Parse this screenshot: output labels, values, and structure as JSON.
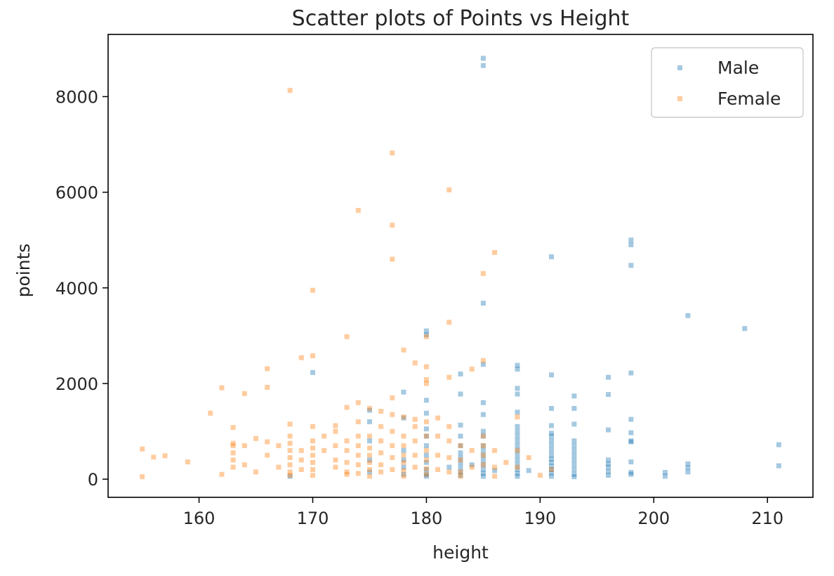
{
  "chart_data": {
    "type": "scatter",
    "title": "Scatter plots of Points vs Height",
    "xlabel": "height",
    "ylabel": "points",
    "xlim": [
      152,
      214
    ],
    "ylim": [
      -380,
      9300
    ],
    "xticks": [
      160,
      170,
      180,
      190,
      200,
      210
    ],
    "yticks": [
      0,
      2000,
      4000,
      6000,
      8000
    ],
    "grid": false,
    "legend_position": "top-right",
    "series": [
      {
        "name": "Male",
        "color": "#1f77b4",
        "points": [
          [
            185,
            8800
          ],
          [
            185,
            8650
          ],
          [
            198,
            5000
          ],
          [
            198,
            4900
          ],
          [
            198,
            4470
          ],
          [
            191,
            4650
          ],
          [
            185,
            3680
          ],
          [
            203,
            3420
          ],
          [
            208,
            3150
          ],
          [
            180,
            3100
          ],
          [
            180,
            3020
          ],
          [
            170,
            2230
          ],
          [
            183,
            2200
          ],
          [
            185,
            2400
          ],
          [
            188,
            2380
          ],
          [
            188,
            2300
          ],
          [
            191,
            2180
          ],
          [
            196,
            2130
          ],
          [
            198,
            2220
          ],
          [
            188,
            1900
          ],
          [
            183,
            1780
          ],
          [
            188,
            1780
          ],
          [
            193,
            1740
          ],
          [
            196,
            1770
          ],
          [
            178,
            1820
          ],
          [
            180,
            1650
          ],
          [
            185,
            1600
          ],
          [
            175,
            1440
          ],
          [
            191,
            1480
          ],
          [
            193,
            1480
          ],
          [
            188,
            1400
          ],
          [
            180,
            1380
          ],
          [
            185,
            1350
          ],
          [
            178,
            1280
          ],
          [
            175,
            1200
          ],
          [
            183,
            1130
          ],
          [
            188,
            1100
          ],
          [
            191,
            1120
          ],
          [
            193,
            1150
          ],
          [
            196,
            1030
          ],
          [
            198,
            1250
          ],
          [
            180,
            1050
          ],
          [
            185,
            1000
          ],
          [
            188,
            1000
          ],
          [
            191,
            960
          ],
          [
            198,
            970
          ],
          [
            211,
            720
          ],
          [
            211,
            280
          ],
          [
            201,
            140
          ],
          [
            201,
            60
          ],
          [
            203,
            320
          ],
          [
            203,
            240
          ],
          [
            203,
            150
          ],
          [
            198,
            780
          ],
          [
            198,
            800
          ],
          [
            198,
            360
          ],
          [
            198,
            140
          ],
          [
            198,
            100
          ],
          [
            196,
            400
          ],
          [
            196,
            320
          ],
          [
            196,
            250
          ],
          [
            196,
            160
          ],
          [
            196,
            80
          ],
          [
            193,
            800
          ],
          [
            193,
            700
          ],
          [
            193,
            600
          ],
          [
            193,
            500
          ],
          [
            193,
            400
          ],
          [
            193,
            300
          ],
          [
            193,
            200
          ],
          [
            193,
            100
          ],
          [
            193,
            50
          ],
          [
            191,
            900
          ],
          [
            191,
            800
          ],
          [
            191,
            700
          ],
          [
            191,
            600
          ],
          [
            191,
            500
          ],
          [
            191,
            420
          ],
          [
            191,
            350
          ],
          [
            191,
            270
          ],
          [
            191,
            200
          ],
          [
            191,
            130
          ],
          [
            191,
            60
          ],
          [
            189,
            180
          ],
          [
            188,
            900
          ],
          [
            188,
            800
          ],
          [
            188,
            700
          ],
          [
            188,
            600
          ],
          [
            188,
            500
          ],
          [
            188,
            400
          ],
          [
            188,
            300
          ],
          [
            188,
            200
          ],
          [
            188,
            120
          ],
          [
            188,
            60
          ],
          [
            186,
            180
          ],
          [
            185,
            900
          ],
          [
            185,
            700
          ],
          [
            185,
            600
          ],
          [
            185,
            500
          ],
          [
            185,
            400
          ],
          [
            185,
            300
          ],
          [
            185,
            200
          ],
          [
            185,
            120
          ],
          [
            185,
            60
          ],
          [
            184,
            300
          ],
          [
            183,
            900
          ],
          [
            183,
            700
          ],
          [
            183,
            550
          ],
          [
            183,
            450
          ],
          [
            183,
            350
          ],
          [
            183,
            250
          ],
          [
            183,
            150
          ],
          [
            183,
            80
          ],
          [
            182,
            250
          ],
          [
            180,
            900
          ],
          [
            180,
            700
          ],
          [
            180,
            500
          ],
          [
            180,
            350
          ],
          [
            180,
            200
          ],
          [
            180,
            100
          ],
          [
            178,
            600
          ],
          [
            178,
            400
          ],
          [
            178,
            250
          ],
          [
            178,
            100
          ],
          [
            175,
            800
          ],
          [
            175,
            400
          ],
          [
            175,
            150
          ],
          [
            168,
            60
          ],
          [
            180,
            60
          ]
        ]
      },
      {
        "name": "Female",
        "color": "#ff7f0e",
        "points": [
          [
            168,
            8130
          ],
          [
            177,
            6820
          ],
          [
            182,
            6050
          ],
          [
            174,
            5620
          ],
          [
            177,
            5310
          ],
          [
            177,
            4600
          ],
          [
            186,
            4740
          ],
          [
            185,
            4300
          ],
          [
            170,
            3950
          ],
          [
            182,
            3280
          ],
          [
            173,
            2980
          ],
          [
            180,
            2980
          ],
          [
            178,
            2700
          ],
          [
            170,
            2580
          ],
          [
            169,
            2540
          ],
          [
            185,
            2480
          ],
          [
            184,
            2300
          ],
          [
            166,
            2310
          ],
          [
            180,
            2350
          ],
          [
            179,
            2430
          ],
          [
            182,
            2130
          ],
          [
            180,
            2080
          ],
          [
            180,
            2000
          ],
          [
            162,
            1910
          ],
          [
            166,
            1920
          ],
          [
            164,
            1790
          ],
          [
            161,
            1380
          ],
          [
            177,
            1700
          ],
          [
            174,
            1600
          ],
          [
            173,
            1500
          ],
          [
            175,
            1480
          ],
          [
            176,
            1420
          ],
          [
            177,
            1350
          ],
          [
            178,
            1300
          ],
          [
            179,
            1250
          ],
          [
            181,
            1280
          ],
          [
            172,
            1120
          ],
          [
            168,
            1150
          ],
          [
            170,
            1100
          ],
          [
            163,
            1080
          ],
          [
            165,
            850
          ],
          [
            166,
            780
          ],
          [
            167,
            700
          ],
          [
            155,
            630
          ],
          [
            156,
            460
          ],
          [
            157,
            490
          ],
          [
            159,
            360
          ],
          [
            155,
            50
          ],
          [
            162,
            100
          ],
          [
            163,
            750
          ],
          [
            163,
            700
          ],
          [
            163,
            550
          ],
          [
            163,
            400
          ],
          [
            163,
            250
          ],
          [
            164,
            700
          ],
          [
            164,
            300
          ],
          [
            165,
            150
          ],
          [
            166,
            500
          ],
          [
            167,
            250
          ],
          [
            168,
            900
          ],
          [
            168,
            750
          ],
          [
            168,
            600
          ],
          [
            168,
            450
          ],
          [
            168,
            300
          ],
          [
            168,
            150
          ],
          [
            169,
            600
          ],
          [
            169,
            400
          ],
          [
            169,
            200
          ],
          [
            170,
            800
          ],
          [
            170,
            650
          ],
          [
            170,
            500
          ],
          [
            170,
            350
          ],
          [
            170,
            200
          ],
          [
            170,
            80
          ],
          [
            171,
            900
          ],
          [
            171,
            600
          ],
          [
            172,
            1000
          ],
          [
            172,
            700
          ],
          [
            172,
            400
          ],
          [
            172,
            250
          ],
          [
            173,
            800
          ],
          [
            173,
            600
          ],
          [
            173,
            350
          ],
          [
            173,
            150
          ],
          [
            174,
            1200
          ],
          [
            174,
            900
          ],
          [
            174,
            700
          ],
          [
            174,
            500
          ],
          [
            174,
            300
          ],
          [
            174,
            120
          ],
          [
            175,
            900
          ],
          [
            175,
            650
          ],
          [
            175,
            500
          ],
          [
            175,
            350
          ],
          [
            175,
            200
          ],
          [
            175,
            60
          ],
          [
            176,
            1100
          ],
          [
            176,
            800
          ],
          [
            176,
            550
          ],
          [
            176,
            300
          ],
          [
            176,
            150
          ],
          [
            177,
            1000
          ],
          [
            177,
            700
          ],
          [
            177,
            450
          ],
          [
            177,
            200
          ],
          [
            178,
            900
          ],
          [
            178,
            700
          ],
          [
            178,
            500
          ],
          [
            178,
            350
          ],
          [
            178,
            180
          ],
          [
            179,
            1100
          ],
          [
            179,
            800
          ],
          [
            179,
            500
          ],
          [
            179,
            250
          ],
          [
            180,
            1200
          ],
          [
            180,
            900
          ],
          [
            180,
            600
          ],
          [
            180,
            400
          ],
          [
            180,
            220
          ],
          [
            180,
            100
          ],
          [
            181,
            900
          ],
          [
            181,
            500
          ],
          [
            181,
            200
          ],
          [
            182,
            1100
          ],
          [
            182,
            800
          ],
          [
            182,
            450
          ],
          [
            182,
            150
          ],
          [
            183,
            700
          ],
          [
            183,
            400
          ],
          [
            183,
            150
          ],
          [
            184,
            600
          ],
          [
            184,
            250
          ],
          [
            185,
            900
          ],
          [
            185,
            700
          ],
          [
            185,
            500
          ],
          [
            185,
            300
          ],
          [
            186,
            600
          ],
          [
            186,
            250
          ],
          [
            186,
            60
          ],
          [
            187,
            350
          ],
          [
            188,
            1300
          ],
          [
            188,
            600
          ],
          [
            188,
            250
          ],
          [
            189,
            450
          ],
          [
            190,
            80
          ],
          [
            191,
            200
          ],
          [
            168,
            80
          ],
          [
            173,
            100
          ],
          [
            178,
            60
          ],
          [
            183,
            60
          ]
        ]
      }
    ]
  }
}
